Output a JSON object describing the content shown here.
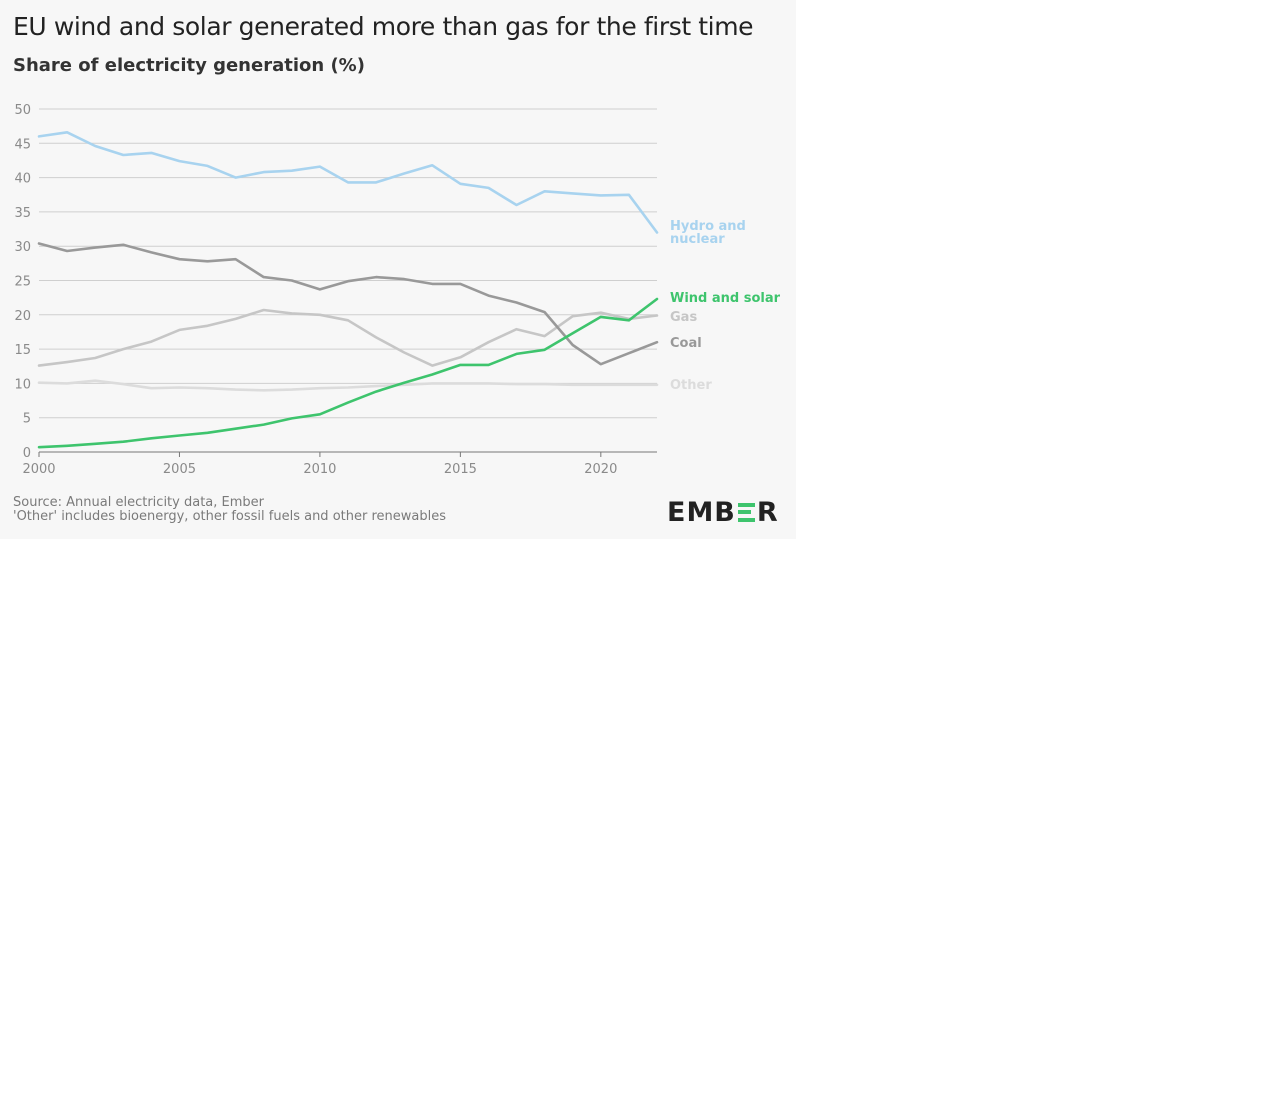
{
  "chart_data": {
    "type": "line",
    "title": "EU wind and solar generated more than gas for the first time",
    "subtitle": "Share of electricity generation (%)",
    "xlabel": "",
    "ylabel": "",
    "ylim": [
      0,
      50
    ],
    "xlim": [
      2000,
      2022
    ],
    "yticks": [
      "0",
      "5",
      "10",
      "15",
      "20",
      "25",
      "30",
      "35",
      "40",
      "45",
      "50"
    ],
    "xticks": [
      "2000",
      "2005",
      "2010",
      "2015",
      "2020"
    ],
    "grid": "horizontal",
    "x": [
      2000,
      2001,
      2002,
      2003,
      2004,
      2005,
      2006,
      2007,
      2008,
      2009,
      2010,
      2011,
      2012,
      2013,
      2014,
      2015,
      2016,
      2017,
      2018,
      2019,
      2020,
      2021,
      2022
    ],
    "series": [
      {
        "name": "Hydro and nuclear",
        "label_lines": [
          "Hydro and",
          "nuclear"
        ],
        "color": "#a8d3ef",
        "values": [
          46,
          46.6,
          44.6,
          43.3,
          43.6,
          42.4,
          41.7,
          40,
          40.8,
          41,
          41.6,
          39.3,
          39.3,
          40.6,
          41.8,
          39.1,
          38.5,
          36,
          38,
          37.7,
          37.4,
          37.5,
          32
        ]
      },
      {
        "name": "Wind and solar",
        "label_lines": [
          "Wind and solar"
        ],
        "color": "#3ec46d",
        "values": [
          0.7,
          0.9,
          1.2,
          1.5,
          2.0,
          2.4,
          2.8,
          3.4,
          4.0,
          4.9,
          5.5,
          7.2,
          8.8,
          10.1,
          11.3,
          12.7,
          12.7,
          14.3,
          14.9,
          17.3,
          19.7,
          19.2,
          22.3
        ]
      },
      {
        "name": "Gas",
        "label_lines": [
          "Gas"
        ],
        "color": "#c6c6c6",
        "values": [
          12.6,
          13.1,
          13.7,
          15.0,
          16.1,
          17.8,
          18.4,
          19.4,
          20.7,
          20.2,
          20.0,
          19.2,
          16.7,
          14.5,
          12.6,
          13.8,
          16.0,
          17.9,
          16.9,
          19.8,
          20.3,
          19.4,
          19.9
        ]
      },
      {
        "name": "Coal",
        "label_lines": [
          "Coal"
        ],
        "color": "#999999",
        "values": [
          30.4,
          29.3,
          29.8,
          30.2,
          29.1,
          28.1,
          27.8,
          28.1,
          25.5,
          25.0,
          23.7,
          24.9,
          25.5,
          25.2,
          24.5,
          24.5,
          22.8,
          21.8,
          20.4,
          15.6,
          12.8,
          14.4,
          16.0
        ]
      },
      {
        "name": "Other",
        "label_lines": [
          "Other"
        ],
        "color": "#dcdcdc",
        "values": [
          10.1,
          10.0,
          10.4,
          9.9,
          9.3,
          9.4,
          9.3,
          9.1,
          9.0,
          9.1,
          9.3,
          9.4,
          9.6,
          9.8,
          10.0,
          10.0,
          10.0,
          9.9,
          9.9,
          9.8,
          9.8,
          9.8,
          9.8
        ]
      }
    ]
  },
  "footer": {
    "source_line1": "Source: Annual electricity data, Ember",
    "source_line2": "'Other' includes bioenergy, other fossil fuels and other renewables",
    "logo_text": "EMBER",
    "logo_accent_color": "#3ec46d"
  }
}
